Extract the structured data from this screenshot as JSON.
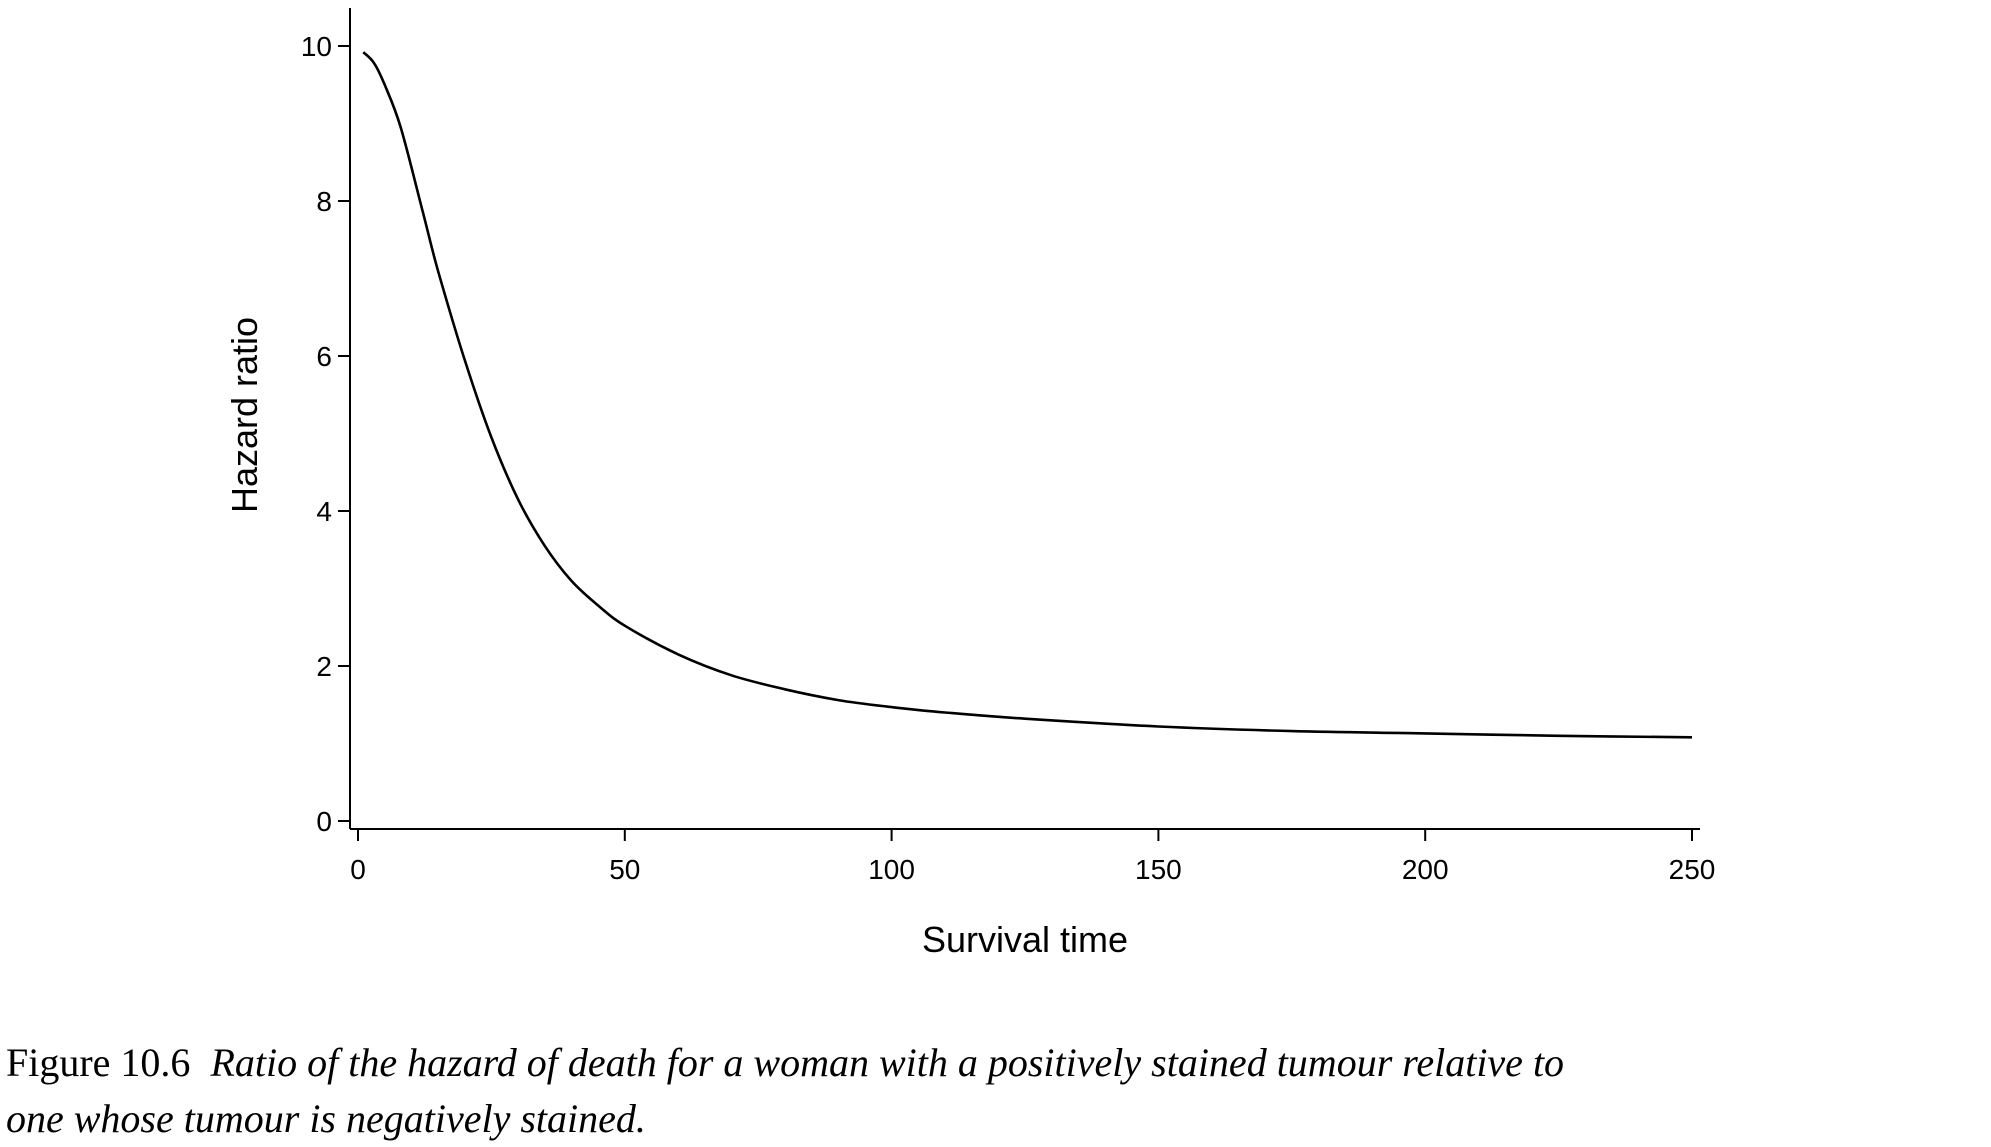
{
  "chart_data": {
    "type": "line",
    "title": "",
    "xlabel": "Survival time",
    "ylabel": "Hazard ratio",
    "xlim": [
      0,
      250
    ],
    "ylim": [
      0,
      10
    ],
    "x_ticks": [
      "0",
      "50",
      "100",
      "150",
      "200",
      "250"
    ],
    "y_ticks": [
      "0",
      "2",
      "4",
      "6",
      "8",
      "10"
    ],
    "grid": false,
    "series": [
      {
        "color": "#000000",
        "x": [
          1,
          3,
          5,
          8,
          12,
          15,
          20,
          25,
          30,
          35,
          40,
          45,
          50,
          60,
          70,
          80,
          90,
          100,
          110,
          125,
          150,
          175,
          200,
          225,
          250
        ],
        "y": [
          9.92,
          9.78,
          9.5,
          8.95,
          7.9,
          7.1,
          5.95,
          4.95,
          4.15,
          3.55,
          3.1,
          2.78,
          2.52,
          2.15,
          1.88,
          1.7,
          1.56,
          1.47,
          1.4,
          1.32,
          1.22,
          1.16,
          1.13,
          1.1,
          1.08
        ]
      }
    ]
  },
  "caption": {
    "label": "Figure 10.6",
    "text_line1": "Ratio of the hazard of death for a woman with a positively stained tumour relative to",
    "text_line2": "one whose tumour is negatively stained."
  }
}
